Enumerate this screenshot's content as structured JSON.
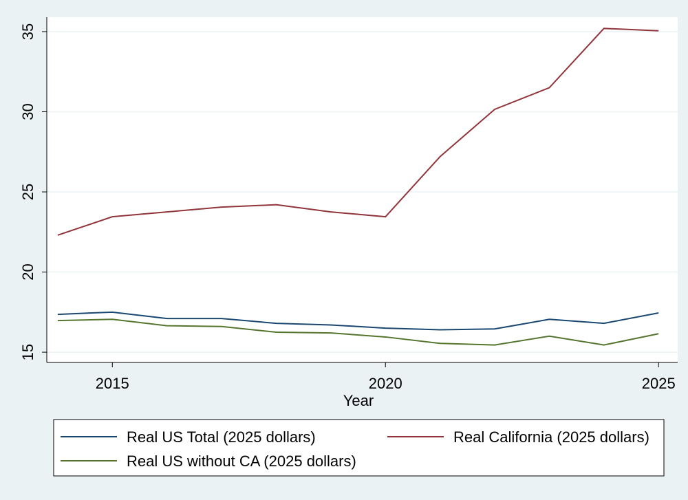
{
  "chart_data": {
    "type": "line",
    "x_label": "Year",
    "x": [
      2014,
      2015,
      2016,
      2017,
      2018,
      2019,
      2020,
      2021,
      2022,
      2023,
      2024,
      2025
    ],
    "series": [
      {
        "name": "Real US Total (2025 dollars)",
        "color": "#1a476f",
        "values": [
          17.36,
          17.5,
          17.1,
          17.1,
          16.8,
          16.7,
          16.5,
          16.4,
          16.45,
          17.05,
          16.8,
          17.45
        ]
      },
      {
        "name": "Real California (2025 dollars)",
        "color": "#90353b",
        "values": [
          22.3,
          23.45,
          23.75,
          24.05,
          24.2,
          23.75,
          23.45,
          27.2,
          30.15,
          31.5,
          35.2,
          35.05
        ]
      },
      {
        "name": "Real US without CA (2025 dollars)",
        "color": "#55752f",
        "values": [
          16.97,
          17.05,
          16.65,
          16.6,
          16.25,
          16.2,
          15.95,
          15.55,
          15.45,
          16.0,
          15.45,
          16.15
        ]
      }
    ],
    "xlim": [
      2013.8,
      2025.35
    ],
    "xticks": [
      2015,
      2020,
      2025
    ],
    "ylim": [
      14.36,
      35.9
    ],
    "yticks": [
      15,
      20,
      25,
      30,
      35
    ],
    "grid": true,
    "legend": "bottom"
  }
}
